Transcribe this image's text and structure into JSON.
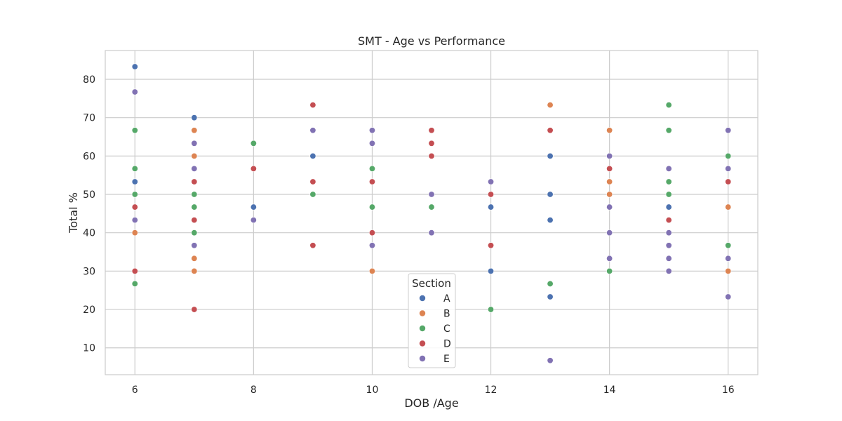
{
  "chart_data": {
    "type": "scatter",
    "title": "SMT - Age vs Performance",
    "xlabel": "DOB /Age",
    "ylabel": "Total %",
    "xlim": [
      5.5,
      16.5
    ],
    "ylim": [
      3,
      87.5
    ],
    "xticks": [
      6,
      8,
      10,
      12,
      14,
      16
    ],
    "yticks": [
      10,
      20,
      30,
      40,
      50,
      60,
      70,
      80
    ],
    "grid": true,
    "legend": {
      "title": "Section",
      "placement": "lower-center"
    },
    "series": [
      {
        "name": "A",
        "color": "#4c72b0",
        "points": [
          [
            6,
            83.3
          ],
          [
            6,
            53.3
          ],
          [
            7,
            70
          ],
          [
            8,
            46.7
          ],
          [
            9,
            60
          ],
          [
            12,
            46.7
          ],
          [
            12,
            30
          ],
          [
            13,
            60
          ],
          [
            13,
            50
          ],
          [
            13,
            43.3
          ],
          [
            13,
            23.3
          ],
          [
            15,
            46.7
          ]
        ]
      },
      {
        "name": "B",
        "color": "#dd8452",
        "points": [
          [
            6,
            40
          ],
          [
            7,
            66.7
          ],
          [
            7,
            60
          ],
          [
            7,
            33.3
          ],
          [
            7,
            30
          ],
          [
            10,
            30
          ],
          [
            13,
            73.3
          ],
          [
            14,
            66.7
          ],
          [
            14,
            53.3
          ],
          [
            14,
            50
          ],
          [
            16,
            46.7
          ],
          [
            16,
            30
          ]
        ]
      },
      {
        "name": "C",
        "color": "#55a868",
        "points": [
          [
            6,
            66.7
          ],
          [
            6,
            56.7
          ],
          [
            6,
            50
          ],
          [
            6,
            26.7
          ],
          [
            7,
            50
          ],
          [
            7,
            46.7
          ],
          [
            7,
            40
          ],
          [
            8,
            63.3
          ],
          [
            9,
            50
          ],
          [
            10,
            56.7
          ],
          [
            10,
            46.7
          ],
          [
            11,
            46.7
          ],
          [
            12,
            20
          ],
          [
            13,
            26.7
          ],
          [
            14,
            30
          ],
          [
            15,
            73.3
          ],
          [
            15,
            66.7
          ],
          [
            15,
            53.3
          ],
          [
            15,
            50
          ],
          [
            16,
            60
          ],
          [
            16,
            36.7
          ]
        ]
      },
      {
        "name": "D",
        "color": "#c44e52",
        "points": [
          [
            6,
            46.7
          ],
          [
            6,
            30
          ],
          [
            7,
            53.3
          ],
          [
            7,
            43.3
          ],
          [
            7,
            20
          ],
          [
            8,
            56.7
          ],
          [
            9,
            73.3
          ],
          [
            9,
            53.3
          ],
          [
            9,
            36.7
          ],
          [
            10,
            53.3
          ],
          [
            10,
            40
          ],
          [
            11,
            66.7
          ],
          [
            11,
            63.3
          ],
          [
            11,
            60
          ],
          [
            12,
            50
          ],
          [
            12,
            36.7
          ],
          [
            13,
            66.7
          ],
          [
            14,
            56.7
          ],
          [
            15,
            43.3
          ],
          [
            16,
            53.3
          ]
        ]
      },
      {
        "name": "E",
        "color": "#8172b3",
        "points": [
          [
            6,
            76.7
          ],
          [
            6,
            43.3
          ],
          [
            7,
            63.3
          ],
          [
            7,
            56.7
          ],
          [
            7,
            36.7
          ],
          [
            8,
            43.3
          ],
          [
            9,
            66.7
          ],
          [
            10,
            66.7
          ],
          [
            10,
            63.3
          ],
          [
            10,
            36.7
          ],
          [
            11,
            50
          ],
          [
            11,
            40
          ],
          [
            12,
            53.3
          ],
          [
            13,
            6.7
          ],
          [
            14,
            60
          ],
          [
            14,
            46.7
          ],
          [
            14,
            40
          ],
          [
            14,
            33.3
          ],
          [
            15,
            56.7
          ],
          [
            15,
            40
          ],
          [
            15,
            36.7
          ],
          [
            15,
            33.3
          ],
          [
            15,
            30
          ],
          [
            16,
            66.7
          ],
          [
            16,
            56.7
          ],
          [
            16,
            33.3
          ],
          [
            16,
            23.3
          ]
        ]
      }
    ]
  }
}
